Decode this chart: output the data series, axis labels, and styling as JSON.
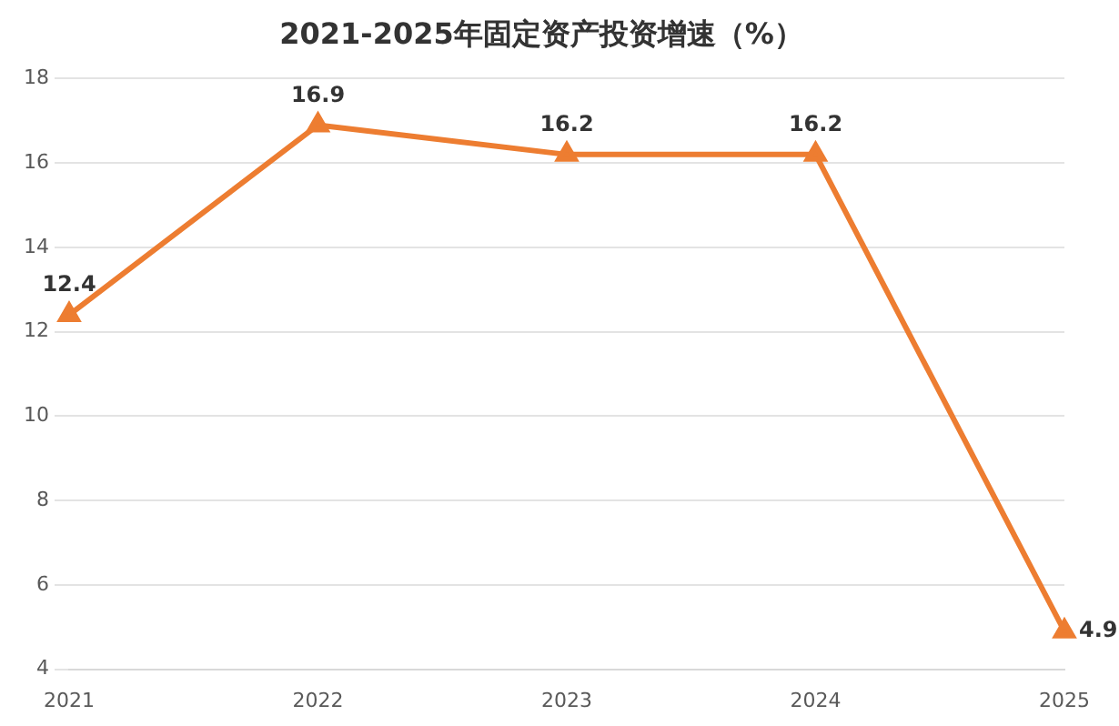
{
  "chart_data": {
    "type": "line",
    "title": "2021-2025年固定资产投资增速（%）",
    "categories": [
      "2021",
      "2022",
      "2023",
      "2024",
      "2025"
    ],
    "series": [
      {
        "color": "#ed7d31",
        "values": [
          12.4,
          16.9,
          16.2,
          16.2,
          4.9
        ]
      }
    ],
    "ylim": [
      4,
      18
    ],
    "yticks": [
      4,
      6,
      8,
      10,
      12,
      14,
      16,
      18
    ],
    "grid": "y",
    "legend": false,
    "marker": "triangle",
    "line_style": "solid",
    "data_labels": true
  }
}
